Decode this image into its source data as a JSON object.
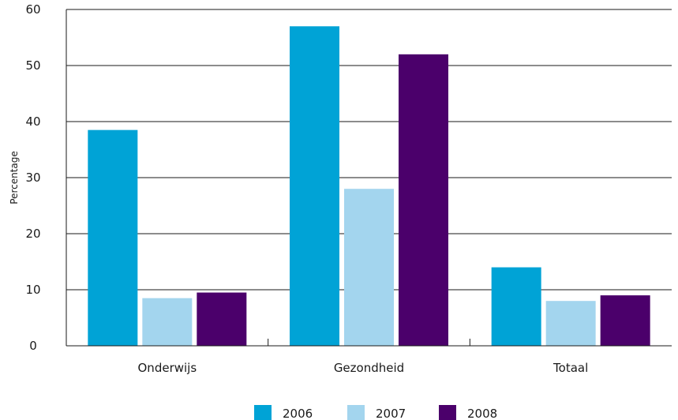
{
  "chart_data": {
    "type": "bar",
    "categories": [
      "Onderwijs",
      "Gezondheid",
      "Totaal"
    ],
    "series": [
      {
        "name": "2006",
        "values": [
          38.5,
          57,
          14
        ],
        "color": "#00a3d6"
      },
      {
        "name": "2007",
        "values": [
          8.5,
          28,
          8
        ],
        "color": "#a3d5ee"
      },
      {
        "name": "2008",
        "values": [
          9.5,
          52,
          9
        ],
        "color": "#4b006b"
      }
    ],
    "title": "",
    "xlabel": "",
    "ylabel": "Percentage",
    "ylim": [
      0,
      60
    ],
    "yticks": [
      0,
      10,
      20,
      30,
      40,
      50,
      60
    ],
    "ytick_labels": [
      "0",
      "10",
      "20",
      "30",
      "40",
      "50",
      "60"
    ],
    "grid": true,
    "legend_position": "bottom-center"
  }
}
